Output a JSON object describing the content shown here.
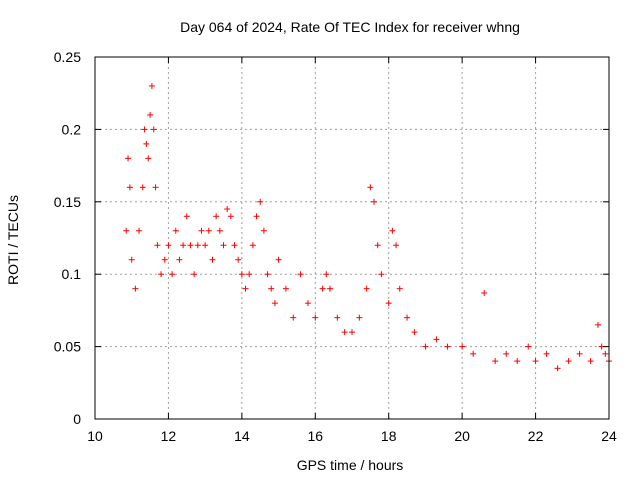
{
  "chart_data": {
    "type": "scatter",
    "title": "Day 064 of 2024, Rate Of TEC Index for receiver whng",
    "xlabel": "GPS time / hours",
    "ylabel": "ROTI / TECUs",
    "xlim": [
      10,
      24
    ],
    "ylim": [
      0,
      0.25
    ],
    "x_ticks": [
      10,
      12,
      14,
      16,
      18,
      20,
      22,
      24
    ],
    "y_ticks": [
      0,
      0.05,
      0.1,
      0.15,
      0.2,
      0.25
    ],
    "y_tick_labels": [
      "0",
      "0.05",
      "0.1",
      "0.15",
      "0.2",
      "0.25"
    ],
    "grid": true,
    "marker": "+",
    "color": "#ff0000",
    "series": [
      {
        "x": [
          10.85,
          10.9,
          10.95,
          11.0,
          11.1,
          11.2,
          11.3,
          11.35,
          11.4,
          11.45,
          11.5,
          11.55,
          11.6,
          11.65,
          11.7,
          11.8,
          11.9,
          12.0,
          12.1,
          12.2,
          12.3,
          12.4,
          12.5,
          12.6,
          12.7,
          12.8,
          12.9,
          13.0,
          13.1,
          13.2,
          13.3,
          13.4,
          13.5,
          13.6,
          13.7,
          13.8,
          13.9,
          14.0,
          14.1,
          14.2,
          14.3,
          14.4,
          14.5,
          14.6,
          14.7,
          14.8,
          14.9,
          15.0,
          15.2,
          15.4,
          15.6,
          15.8,
          16.0,
          16.2,
          16.3,
          16.4,
          16.6,
          16.8,
          17.0,
          17.2,
          17.4,
          17.5,
          17.6,
          17.7,
          17.8,
          18.0,
          18.1,
          18.2,
          18.3,
          18.5,
          18.7,
          19.0,
          19.3,
          19.6,
          20.0,
          20.3,
          20.6,
          20.9,
          21.2,
          21.5,
          21.8,
          22.0,
          22.3,
          22.6,
          22.9,
          23.2,
          23.5,
          23.7,
          23.8,
          23.9,
          24.0
        ],
        "y": [
          0.13,
          0.18,
          0.16,
          0.11,
          0.09,
          0.13,
          0.16,
          0.2,
          0.19,
          0.18,
          0.21,
          0.23,
          0.2,
          0.16,
          0.12,
          0.1,
          0.11,
          0.12,
          0.1,
          0.13,
          0.11,
          0.12,
          0.14,
          0.12,
          0.1,
          0.12,
          0.13,
          0.12,
          0.13,
          0.11,
          0.14,
          0.13,
          0.12,
          0.145,
          0.14,
          0.12,
          0.11,
          0.1,
          0.09,
          0.1,
          0.12,
          0.14,
          0.15,
          0.13,
          0.1,
          0.09,
          0.08,
          0.11,
          0.09,
          0.07,
          0.1,
          0.08,
          0.07,
          0.09,
          0.1,
          0.09,
          0.07,
          0.06,
          0.06,
          0.07,
          0.09,
          0.16,
          0.15,
          0.12,
          0.1,
          0.08,
          0.13,
          0.12,
          0.09,
          0.07,
          0.06,
          0.05,
          0.055,
          0.05,
          0.05,
          0.045,
          0.087,
          0.04,
          0.045,
          0.04,
          0.05,
          0.04,
          0.045,
          0.035,
          0.04,
          0.045,
          0.04,
          0.065,
          0.05,
          0.045,
          0.04
        ]
      }
    ]
  }
}
